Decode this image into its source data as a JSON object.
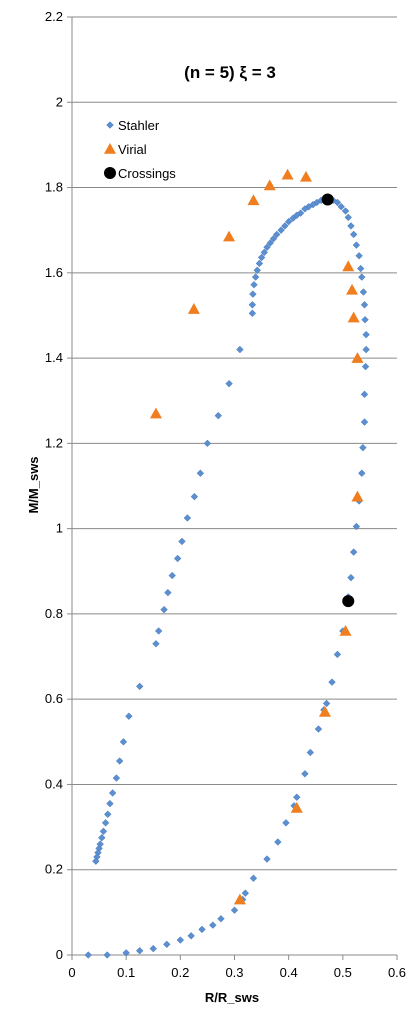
{
  "chart_data": {
    "type": "scatter",
    "title": "(n = 5)   ξ = 3",
    "xlabel": "R/R_sws",
    "ylabel": "M/M_sws",
    "xlim": [
      0,
      0.6
    ],
    "ylim": [
      0,
      2.2
    ],
    "xticks": [
      "0",
      "0.1",
      "0.2",
      "0.3",
      "0.4",
      "0.5",
      "0.6"
    ],
    "yticks": [
      "0",
      "0.2",
      "0.4",
      "0.6",
      "0.8",
      "1",
      "1.2",
      "1.4",
      "1.6",
      "1.8",
      "2",
      "2.2"
    ],
    "grid": "horizontal",
    "legend_position": "top-left",
    "series": [
      {
        "name": "Stahler",
        "marker": "diamond",
        "color": "#5b8fd0",
        "points": [
          [
            0.03,
            0.0
          ],
          [
            0.065,
            0.0
          ],
          [
            0.1,
            0.005
          ],
          [
            0.125,
            0.01
          ],
          [
            0.15,
            0.015
          ],
          [
            0.175,
            0.025
          ],
          [
            0.2,
            0.035
          ],
          [
            0.22,
            0.045
          ],
          [
            0.24,
            0.06
          ],
          [
            0.26,
            0.07
          ],
          [
            0.275,
            0.085
          ],
          [
            0.3,
            0.105
          ],
          [
            0.315,
            0.13
          ],
          [
            0.32,
            0.145
          ],
          [
            0.335,
            0.18
          ],
          [
            0.36,
            0.225
          ],
          [
            0.38,
            0.265
          ],
          [
            0.395,
            0.31
          ],
          [
            0.41,
            0.35
          ],
          [
            0.415,
            0.37
          ],
          [
            0.43,
            0.425
          ],
          [
            0.44,
            0.475
          ],
          [
            0.455,
            0.53
          ],
          [
            0.465,
            0.575
          ],
          [
            0.47,
            0.59
          ],
          [
            0.48,
            0.64
          ],
          [
            0.49,
            0.705
          ],
          [
            0.5,
            0.76
          ],
          [
            0.51,
            0.84
          ],
          [
            0.515,
            0.885
          ],
          [
            0.52,
            0.945
          ],
          [
            0.525,
            1.005
          ],
          [
            0.53,
            1.065
          ],
          [
            0.535,
            1.13
          ],
          [
            0.537,
            1.19
          ],
          [
            0.54,
            1.25
          ],
          [
            0.54,
            1.315
          ],
          [
            0.542,
            1.38
          ],
          [
            0.543,
            1.42
          ],
          [
            0.543,
            1.455
          ],
          [
            0.541,
            1.49
          ],
          [
            0.54,
            1.525
          ],
          [
            0.538,
            1.555
          ],
          [
            0.535,
            1.59
          ],
          [
            0.533,
            1.61
          ],
          [
            0.53,
            1.64
          ],
          [
            0.525,
            1.665
          ],
          [
            0.52,
            1.69
          ],
          [
            0.515,
            1.71
          ],
          [
            0.51,
            1.73
          ],
          [
            0.505,
            1.745
          ],
          [
            0.497,
            1.755
          ],
          [
            0.49,
            1.765
          ],
          [
            0.482,
            1.77
          ],
          [
            0.475,
            1.772
          ],
          [
            0.468,
            1.772
          ],
          [
            0.46,
            1.77
          ],
          [
            0.452,
            1.765
          ],
          [
            0.445,
            1.76
          ],
          [
            0.437,
            1.755
          ],
          [
            0.43,
            1.75
          ],
          [
            0.422,
            1.74
          ],
          [
            0.415,
            1.735
          ],
          [
            0.408,
            1.728
          ],
          [
            0.4,
            1.72
          ],
          [
            0.393,
            1.71
          ],
          [
            0.386,
            1.7
          ],
          [
            0.378,
            1.69
          ],
          [
            0.372,
            1.68
          ],
          [
            0.366,
            1.67
          ],
          [
            0.36,
            1.66
          ],
          [
            0.355,
            1.648
          ],
          [
            0.35,
            1.636
          ],
          [
            0.346,
            1.622
          ],
          [
            0.342,
            1.606
          ],
          [
            0.339,
            1.59
          ],
          [
            0.336,
            1.572
          ],
          [
            0.334,
            1.55
          ],
          [
            0.333,
            1.525
          ],
          [
            0.333,
            1.505
          ],
          [
            0.31,
            1.42
          ],
          [
            0.29,
            1.34
          ],
          [
            0.27,
            1.265
          ],
          [
            0.25,
            1.2
          ],
          [
            0.237,
            1.13
          ],
          [
            0.226,
            1.075
          ],
          [
            0.213,
            1.025
          ],
          [
            0.203,
            0.97
          ],
          [
            0.195,
            0.93
          ],
          [
            0.185,
            0.89
          ],
          [
            0.177,
            0.85
          ],
          [
            0.17,
            0.81
          ],
          [
            0.16,
            0.76
          ],
          [
            0.155,
            0.73
          ],
          [
            0.125,
            0.63
          ],
          [
            0.105,
            0.56
          ],
          [
            0.095,
            0.5
          ],
          [
            0.088,
            0.455
          ],
          [
            0.082,
            0.415
          ],
          [
            0.075,
            0.38
          ],
          [
            0.07,
            0.355
          ],
          [
            0.066,
            0.33
          ],
          [
            0.062,
            0.31
          ],
          [
            0.058,
            0.29
          ],
          [
            0.055,
            0.275
          ],
          [
            0.052,
            0.26
          ],
          [
            0.05,
            0.25
          ],
          [
            0.048,
            0.24
          ],
          [
            0.046,
            0.23
          ],
          [
            0.044,
            0.22
          ]
        ]
      },
      {
        "name": "Virial",
        "marker": "triangle",
        "color": "#f07e1e",
        "points": [
          [
            0.155,
            1.27
          ],
          [
            0.225,
            1.515
          ],
          [
            0.29,
            1.685
          ],
          [
            0.335,
            1.77
          ],
          [
            0.365,
            1.805
          ],
          [
            0.398,
            1.83
          ],
          [
            0.432,
            1.825
          ],
          [
            0.51,
            1.615
          ],
          [
            0.517,
            1.56
          ],
          [
            0.52,
            1.495
          ],
          [
            0.527,
            1.4
          ],
          [
            0.527,
            1.075
          ],
          [
            0.505,
            0.76
          ],
          [
            0.467,
            0.57
          ],
          [
            0.415,
            0.345
          ],
          [
            0.31,
            0.13
          ]
        ]
      },
      {
        "name": "Crossings",
        "marker": "circle",
        "color": "#000000",
        "points": [
          [
            0.472,
            1.772
          ],
          [
            0.51,
            0.83
          ]
        ]
      }
    ]
  }
}
